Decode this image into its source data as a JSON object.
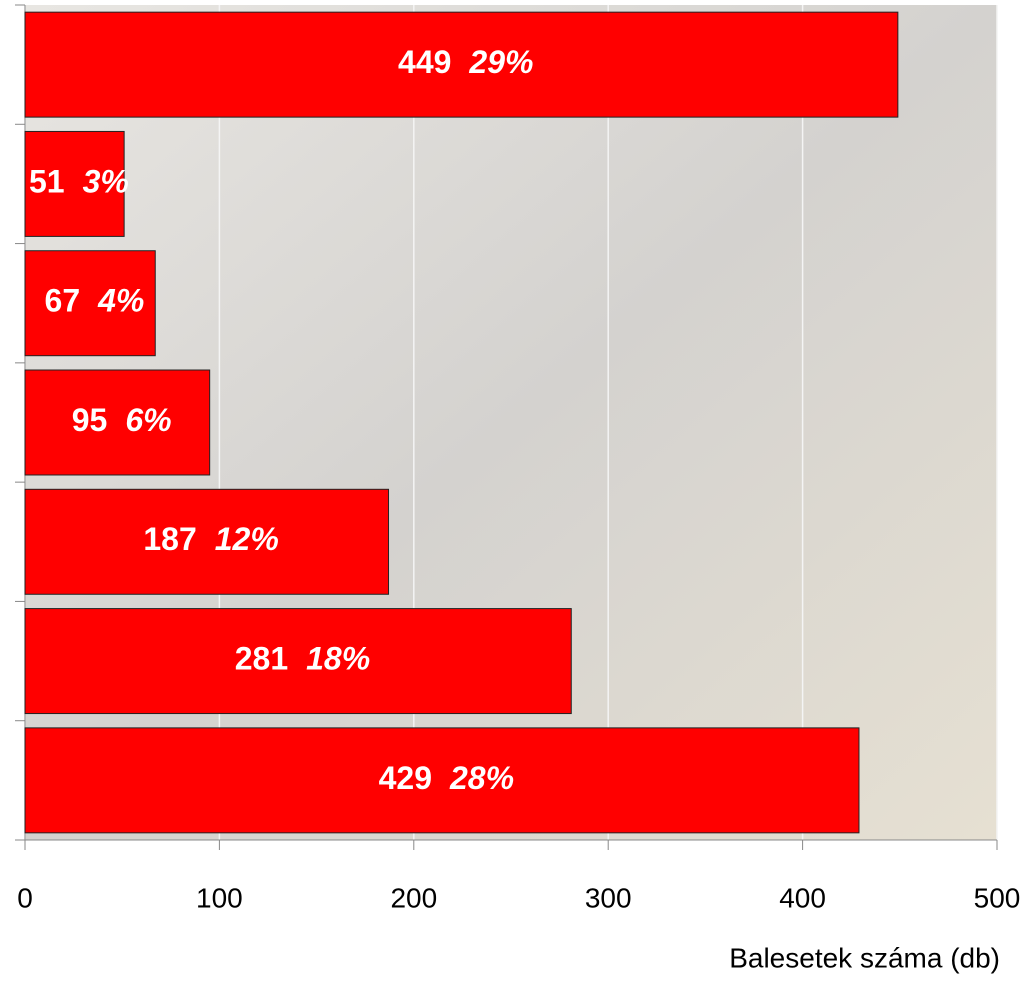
{
  "chart_data": {
    "type": "bar",
    "orientation": "horizontal",
    "x_label": "Balesetek száma (db)",
    "categories": [
      null,
      null,
      null,
      null,
      null,
      null,
      null
    ],
    "values": [
      449,
      51,
      67,
      95,
      187,
      281,
      429
    ],
    "shares": [
      29,
      3,
      4,
      6,
      12,
      18,
      28
    ],
    "share_labels": [
      "29%",
      "3%",
      "4%",
      "6%",
      "12%",
      "18%",
      "28%"
    ],
    "color": "#ff0000",
    "xlim": [
      0,
      500
    ],
    "xticks": [
      0,
      100,
      200,
      300,
      400,
      500
    ],
    "grid": true
  }
}
